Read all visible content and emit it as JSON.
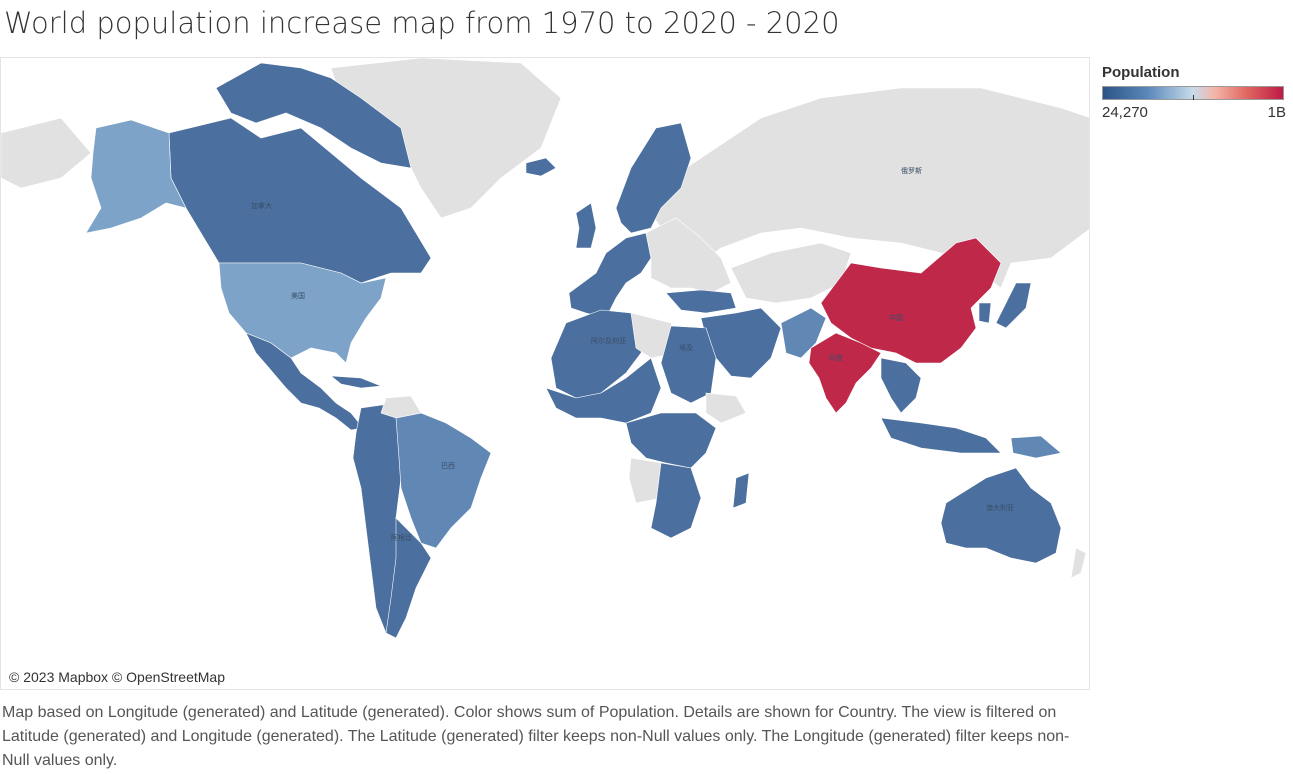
{
  "title": "World population increase map from 1970 to 2020 - 2020",
  "legend": {
    "title": "Population",
    "min_label": "24,270",
    "max_label": "1B",
    "color_low": "#2c5386",
    "color_mid": "#c8dbeb",
    "color_high": "#be1a45"
  },
  "map": {
    "attribution": "© 2023 Mapbox © OpenStreetMap",
    "no_data_color": "#e1e1e1",
    "labels": {
      "russia": "俄罗斯",
      "canada": "加拿大",
      "usa": "美国",
      "brazil": "巴西",
      "china": "中国",
      "india": "印度",
      "australia": "澳大利亚",
      "algeria": "阿尔及利亚",
      "argentina": "阿根廷",
      "egypt": "埃及"
    }
  },
  "caption": "Map based on Longitude (generated) and Latitude (generated).  Color shows sum of Population.  Details are shown for Country.  The view is filtered on Latitude (generated) and Longitude (generated). The Latitude (generated) filter keeps non-Null values only. The Longitude (generated) filter keeps non-Null values only."
}
